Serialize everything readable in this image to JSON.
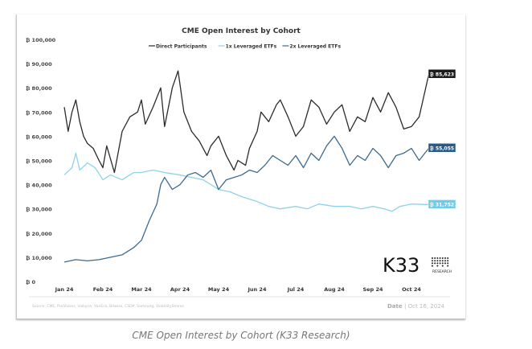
{
  "chart_data": {
    "type": "line",
    "title": "CME Open Interest by Cohort",
    "xlabel": "",
    "ylabel": "",
    "ylim": [
      0,
      100000
    ],
    "y_ticks": [
      "₿ 0",
      "₿ 10,000",
      "₿ 20,000",
      "₿ 30,000",
      "₿ 40,000",
      "₿ 50,000",
      "₿ 60,000",
      "₿ 70,000",
      "₿ 80,000",
      "₿ 90,000",
      "₿ 100,000"
    ],
    "x_ticks": [
      "Jan 24",
      "Feb 24",
      "Mar 24",
      "Apr 24",
      "May 24",
      "Jun 24",
      "Jul 24",
      "Aug 24",
      "Sep 24",
      "Oct 24"
    ],
    "x_unit": "months since Jan 2024",
    "legend_placement": "top-center",
    "series": [
      {
        "name": "Direct Participants",
        "color": "#2b2b2b",
        "end_label": "₿ 85,623",
        "label_bg": "#1a1a1a",
        "points": [
          [
            0,
            72
          ],
          [
            0.1,
            62
          ],
          [
            0.2,
            70
          ],
          [
            0.3,
            75
          ],
          [
            0.4,
            66
          ],
          [
            0.5,
            60
          ],
          [
            0.6,
            57
          ],
          [
            0.75,
            55
          ],
          [
            0.9,
            50
          ],
          [
            1.0,
            47
          ],
          [
            1.1,
            56
          ],
          [
            1.3,
            45
          ],
          [
            1.5,
            62
          ],
          [
            1.7,
            68
          ],
          [
            1.9,
            70
          ],
          [
            2.0,
            75
          ],
          [
            2.1,
            65
          ],
          [
            2.3,
            72
          ],
          [
            2.5,
            80
          ],
          [
            2.6,
            64
          ],
          [
            2.8,
            80
          ],
          [
            2.95,
            87
          ],
          [
            3.1,
            70
          ],
          [
            3.3,
            62
          ],
          [
            3.5,
            58
          ],
          [
            3.7,
            52
          ],
          [
            3.8,
            56
          ],
          [
            4.0,
            60
          ],
          [
            4.2,
            52
          ],
          [
            4.4,
            46
          ],
          [
            4.5,
            50
          ],
          [
            4.7,
            48
          ],
          [
            4.8,
            55
          ],
          [
            5.0,
            62
          ],
          [
            5.1,
            70
          ],
          [
            5.3,
            66
          ],
          [
            5.5,
            73
          ],
          [
            5.6,
            75
          ],
          [
            5.8,
            68
          ],
          [
            6.0,
            60
          ],
          [
            6.2,
            64
          ],
          [
            6.4,
            75
          ],
          [
            6.6,
            72
          ],
          [
            6.8,
            65
          ],
          [
            7.0,
            70
          ],
          [
            7.2,
            73
          ],
          [
            7.4,
            62
          ],
          [
            7.6,
            68
          ],
          [
            7.8,
            66
          ],
          [
            8.0,
            76
          ],
          [
            8.2,
            70
          ],
          [
            8.4,
            78
          ],
          [
            8.6,
            72
          ],
          [
            8.8,
            63
          ],
          [
            9.0,
            64
          ],
          [
            9.2,
            68
          ],
          [
            9.45,
            85.623
          ]
        ]
      },
      {
        "name": "1x Leveraged ETFs",
        "color": "#8fd3e8",
        "end_label": "₿ 31,752",
        "label_bg": "#6fcbe8",
        "points": [
          [
            0,
            44
          ],
          [
            0.2,
            47
          ],
          [
            0.3,
            53
          ],
          [
            0.4,
            46
          ],
          [
            0.6,
            49
          ],
          [
            0.8,
            47
          ],
          [
            1.0,
            42
          ],
          [
            1.2,
            44
          ],
          [
            1.5,
            42
          ],
          [
            1.8,
            45
          ],
          [
            2.0,
            45
          ],
          [
            2.3,
            46
          ],
          [
            2.6,
            45
          ],
          [
            3.0,
            44
          ],
          [
            3.3,
            43
          ],
          [
            3.6,
            42
          ],
          [
            3.8,
            40
          ],
          [
            4.0,
            38
          ],
          [
            4.3,
            37
          ],
          [
            4.6,
            35
          ],
          [
            5.0,
            33
          ],
          [
            5.3,
            31
          ],
          [
            5.6,
            30
          ],
          [
            6.0,
            31
          ],
          [
            6.3,
            30
          ],
          [
            6.6,
            32
          ],
          [
            7.0,
            31
          ],
          [
            7.4,
            31
          ],
          [
            7.7,
            30
          ],
          [
            8.0,
            31
          ],
          [
            8.3,
            30
          ],
          [
            8.5,
            29
          ],
          [
            8.7,
            31
          ],
          [
            9.0,
            32
          ],
          [
            9.45,
            31.752
          ]
        ]
      },
      {
        "name": "2x Leveraged ETFs",
        "color": "#3d6a8f",
        "end_label": "₿ 55,055",
        "label_bg": "#2a5a85",
        "points": [
          [
            0,
            8
          ],
          [
            0.3,
            9
          ],
          [
            0.6,
            8.5
          ],
          [
            0.9,
            9
          ],
          [
            1.2,
            10
          ],
          [
            1.5,
            11
          ],
          [
            1.8,
            14
          ],
          [
            2.0,
            17
          ],
          [
            2.2,
            25
          ],
          [
            2.4,
            32
          ],
          [
            2.5,
            40
          ],
          [
            2.6,
            43
          ],
          [
            2.8,
            38
          ],
          [
            3.0,
            40
          ],
          [
            3.2,
            44
          ],
          [
            3.4,
            45
          ],
          [
            3.6,
            43
          ],
          [
            3.8,
            46
          ],
          [
            4.0,
            38
          ],
          [
            4.2,
            42
          ],
          [
            4.4,
            43
          ],
          [
            4.6,
            44
          ],
          [
            4.8,
            46
          ],
          [
            5.0,
            45
          ],
          [
            5.2,
            48
          ],
          [
            5.4,
            52
          ],
          [
            5.6,
            50
          ],
          [
            5.8,
            48
          ],
          [
            6.0,
            52
          ],
          [
            6.2,
            47
          ],
          [
            6.4,
            53
          ],
          [
            6.6,
            50
          ],
          [
            6.8,
            56
          ],
          [
            7.0,
            60
          ],
          [
            7.2,
            55
          ],
          [
            7.4,
            48
          ],
          [
            7.6,
            52
          ],
          [
            7.8,
            50
          ],
          [
            8.0,
            55
          ],
          [
            8.2,
            52
          ],
          [
            8.4,
            47
          ],
          [
            8.6,
            52
          ],
          [
            8.8,
            53
          ],
          [
            9.0,
            55
          ],
          [
            9.2,
            50
          ],
          [
            9.45,
            55.055
          ]
        ]
      }
    ]
  },
  "logo": {
    "text": "K33",
    "sub": "RESEARCH"
  },
  "source": "Source: CME, ProShares, Valkyrie, VanEck, Bitwise, CSOP, Samsung, VolatilityShares",
  "date_label": "Date",
  "date_value": "| Oct 16, 2024",
  "caption": "CME Open Interest by Cohort (K33 Research)"
}
